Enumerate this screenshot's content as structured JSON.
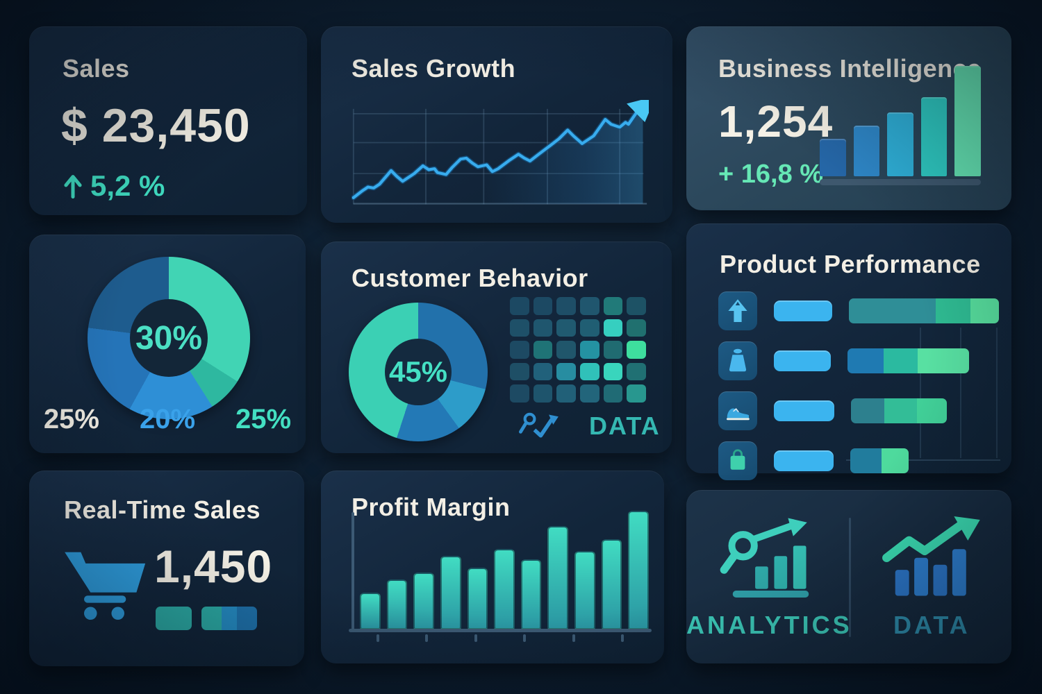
{
  "page": {
    "background": "#0c1c2d",
    "card_background": "#14283c",
    "text_color": "#f3efe5"
  },
  "cards": {
    "sales": {
      "title": "Sales",
      "value": "$ 23,450",
      "delta": "5,2 %",
      "delta_color": "#40dfc3"
    },
    "sales_growth": {
      "title": "Sales Growth"
    },
    "business_intelligence": {
      "title": "Business Intelligence",
      "value": "1,254",
      "delta": "+ 16,8 %",
      "delta_color": "#66e7b5"
    },
    "customer_behavior": {
      "title": "Customer Behavior",
      "footer_label": "DATA",
      "footer_color": "#35b8b2"
    },
    "product_performance": {
      "title": "Product Performance"
    },
    "realtime_sales": {
      "title": "Real-Time Sales",
      "value": "1,450"
    },
    "profit_margin": {
      "title": "Profit Margin"
    },
    "analytics_data": {
      "left_label": "ANALYTICS",
      "left_color": "#3cc9b8",
      "right_label": "DATA",
      "right_color": "#2f8fae"
    }
  },
  "chart_data": [
    {
      "id": "sales_growth",
      "type": "line",
      "title": "Sales Growth",
      "xlabel": "",
      "ylabel": "",
      "x_range": [
        0,
        100
      ],
      "y_range": [
        0,
        100
      ],
      "grid_h": [
        30,
        62,
        92
      ],
      "grid_v": [
        0,
        25,
        45,
        67,
        92
      ],
      "line_color": "#38acee",
      "arrow_color": "#49c8f4",
      "points": [
        [
          0,
          5
        ],
        [
          3,
          12
        ],
        [
          5,
          16
        ],
        [
          7,
          15
        ],
        [
          9,
          19
        ],
        [
          13,
          33
        ],
        [
          15,
          27
        ],
        [
          17,
          22
        ],
        [
          21,
          30
        ],
        [
          24,
          38
        ],
        [
          26,
          34
        ],
        [
          28,
          35
        ],
        [
          29,
          31
        ],
        [
          32,
          29
        ],
        [
          34,
          36
        ],
        [
          37,
          45
        ],
        [
          39,
          46
        ],
        [
          41,
          41
        ],
        [
          43,
          37
        ],
        [
          46,
          39
        ],
        [
          48,
          32
        ],
        [
          50,
          35
        ],
        [
          54,
          44
        ],
        [
          57,
          50
        ],
        [
          59,
          46
        ],
        [
          61,
          43
        ],
        [
          64,
          50
        ],
        [
          68,
          59
        ],
        [
          71,
          66
        ],
        [
          74,
          75
        ],
        [
          76,
          69
        ],
        [
          79,
          61
        ],
        [
          83,
          69
        ],
        [
          87,
          86
        ],
        [
          89,
          81
        ],
        [
          92,
          78
        ],
        [
          94,
          83
        ],
        [
          95,
          81
        ],
        [
          98,
          94
        ],
        [
          100,
          99
        ]
      ]
    },
    {
      "id": "bi_bars",
      "type": "bar",
      "title": "Business Intelligence",
      "values": [
        34,
        46,
        58,
        72,
        100
      ],
      "colors": [
        "#2566a6",
        "#2e86c6",
        "#2fb0d8",
        "#2fccc4",
        "#66e7b5"
      ],
      "baseline_color": "#3e586e"
    },
    {
      "id": "donut_30",
      "type": "pie",
      "center_label": "30%",
      "segments": [
        {
          "value": 34,
          "color": "#41d4b4"
        },
        {
          "value": 7,
          "color": "#2eb8a0"
        },
        {
          "value": 17,
          "color": "#2e8fd6"
        },
        {
          "value": 19,
          "color": "#2574b8"
        },
        {
          "value": 23,
          "color": "#1e5c8e"
        }
      ],
      "labels": [
        {
          "text": "25%",
          "color": "#f3efe5"
        },
        {
          "text": "20%",
          "color": "#3aa2ea"
        },
        {
          "text": "25%",
          "color": "#43dfc2"
        }
      ]
    },
    {
      "id": "donut_45",
      "type": "pie",
      "center_label": "45%",
      "segments": [
        {
          "value": 29,
          "color": "#2271ab"
        },
        {
          "value": 11,
          "color": "#2d9cc9"
        },
        {
          "value": 15,
          "color": "#2379b6"
        },
        {
          "value": 45,
          "color": "#3bd0b4"
        }
      ]
    },
    {
      "id": "behavior_heatmap",
      "type": "heatmap",
      "rows_count": 5,
      "cols_count": 6,
      "rows": [
        [
          "#1c4963",
          "#1c4963",
          "#1e4e67",
          "#20566e",
          "#217a79",
          "#1d5265"
        ],
        [
          "#1e5068",
          "#1f566e",
          "#205a70",
          "#205e73",
          "#36cfc0",
          "#20706f"
        ],
        [
          "#1d4a63",
          "#1f7376",
          "#20566b",
          "#2492a2",
          "#206b71",
          "#3ede9e"
        ],
        [
          "#1e4f66",
          "#21617b",
          "#278da1",
          "#30c1b9",
          "#39d5bd",
          "#207073"
        ],
        [
          "#1d4a63",
          "#1e546c",
          "#216078",
          "#22657b",
          "#206b75",
          "#28978f"
        ]
      ]
    },
    {
      "id": "product_bars",
      "type": "bar",
      "title": "Product Performance",
      "rows": [
        {
          "icon": "arrow-up",
          "icon_color": "#58c4f0",
          "pill_w": 84,
          "total_w": 100,
          "segments": [
            {
              "w": 58,
              "color": "#2f8e97"
            },
            {
              "w": 23,
              "color": "#2fbb92"
            },
            {
              "w": 19,
              "color": "#57de9d"
            }
          ]
        },
        {
          "icon": "weight",
          "icon_color": "#4ab8ee",
          "pill_w": 82,
          "total_w": 81,
          "segments": [
            {
              "w": 30,
              "color": "#1f7ab2"
            },
            {
              "w": 28,
              "color": "#2bbaa0"
            },
            {
              "w": 42,
              "color": "#58e0a2"
            }
          ]
        },
        {
          "icon": "shoe",
          "icon_color": "#3aa8e0",
          "pill_w": 88,
          "total_w": 64,
          "segments": [
            {
              "w": 35,
              "color": "#2d808e"
            },
            {
              "w": 34,
              "color": "#33bd97"
            },
            {
              "w": 31,
              "color": "#41d098"
            }
          ]
        },
        {
          "icon": "shopping-bag",
          "icon_color": "#3fd0ac",
          "pill_w": 86,
          "total_w": 39,
          "segments": [
            {
              "w": 53,
              "color": "#217c9d"
            },
            {
              "w": 47,
              "color": "#4eda9d"
            }
          ]
        }
      ]
    },
    {
      "id": "realtime_mini",
      "type": "bar",
      "bars": [
        {
          "w": 52,
          "segments": [
            {
              "w": 100,
              "color": "#2ba8a2"
            }
          ]
        },
        {
          "w": 80,
          "segments": [
            {
              "w": 36,
              "color": "#2ba8a2"
            },
            {
              "w": 28,
              "color": "#2489bf"
            },
            {
              "w": 36,
              "color": "#1e6fa7"
            }
          ]
        }
      ]
    },
    {
      "id": "profit_margin",
      "type": "bar",
      "title": "Profit Margin",
      "values": [
        31,
        42,
        48,
        62,
        52,
        68,
        59,
        87,
        66,
        76,
        100
      ],
      "bar_color_top": "#41dcc2",
      "bar_color_bottom": "#2a96a2",
      "axis_color": "#3c5a74"
    }
  ]
}
